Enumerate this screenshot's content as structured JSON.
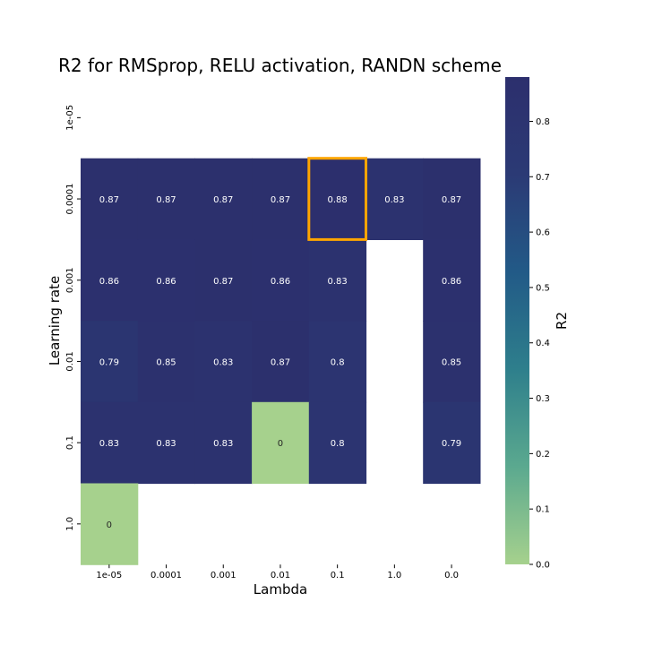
{
  "chart_data": {
    "type": "heatmap",
    "title": "R2 for RMSprop, RELU activation, RANDN scheme",
    "xlabel": "Lambda",
    "ylabel": "Learning rate",
    "x_categories": [
      "1e-05",
      "0.0001",
      "0.001",
      "0.01",
      "0.1",
      "1.0",
      "0.0"
    ],
    "y_categories": [
      "1e-05",
      "0.0001",
      "0.001",
      "0.01",
      "0.1",
      "1.0"
    ],
    "values": [
      [
        null,
        null,
        null,
        null,
        null,
        null,
        null
      ],
      [
        0.87,
        0.87,
        0.87,
        0.87,
        0.88,
        0.83,
        0.87
      ],
      [
        0.86,
        0.86,
        0.87,
        0.86,
        0.83,
        null,
        0.86
      ],
      [
        0.79,
        0.85,
        0.83,
        0.87,
        0.8,
        null,
        0.85
      ],
      [
        0.83,
        0.83,
        0.83,
        0,
        0.8,
        null,
        0.79
      ],
      [
        0,
        null,
        null,
        null,
        null,
        null,
        null
      ]
    ],
    "cell_text": [
      [
        null,
        null,
        null,
        null,
        null,
        null,
        null
      ],
      [
        "0.87",
        "0.87",
        "0.87",
        "0.87",
        "0.88",
        "0.83",
        "0.87"
      ],
      [
        "0.86",
        "0.86",
        "0.87",
        "0.86",
        "0.83",
        null,
        "0.86"
      ],
      [
        "0.79",
        "0.85",
        "0.83",
        "0.87",
        "0.8",
        null,
        "0.85"
      ],
      [
        "0.83",
        "0.83",
        "0.83",
        "0",
        "0.8",
        null,
        "0.79"
      ],
      [
        "0",
        null,
        null,
        null,
        null,
        null,
        null
      ]
    ],
    "highlight": {
      "row": 1,
      "col": 4,
      "color": "#ffa500"
    },
    "colorbar": {
      "label": "R2",
      "min": 0.0,
      "max": 0.88,
      "ticks": [
        "0.0",
        "0.1",
        "0.2",
        "0.3",
        "0.4",
        "0.5",
        "0.6",
        "0.7",
        "0.8"
      ],
      "colormap": [
        "#a6d18d",
        "#5ba98f",
        "#2e7f8c",
        "#225a87",
        "#2b3a75",
        "#2c2f6d"
      ]
    }
  }
}
